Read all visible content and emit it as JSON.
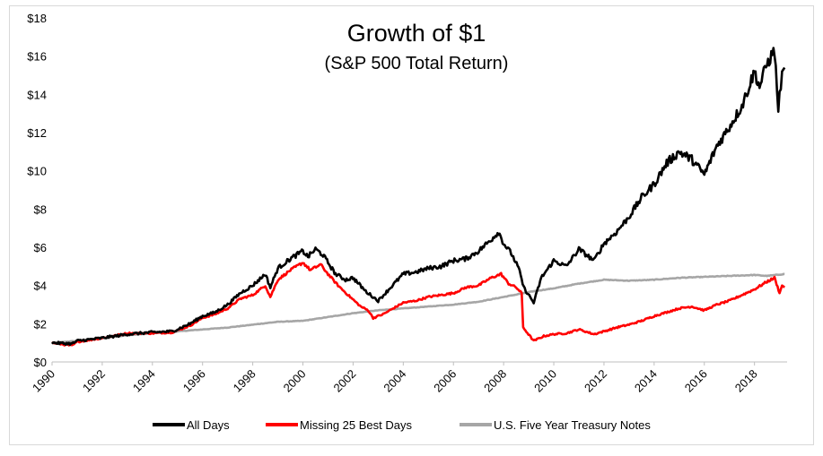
{
  "chart_data": {
    "type": "line",
    "title": "Growth of $1",
    "subtitle": "(S&P 500 Total Return)",
    "xlabel": "",
    "ylabel": "",
    "xlim": [
      1990,
      2019.3
    ],
    "ylim": [
      0,
      18
    ],
    "y_ticks": [
      "$0",
      "$2",
      "$4",
      "$6",
      "$8",
      "$10",
      "$12",
      "$14",
      "$16",
      "$18"
    ],
    "x_ticks": [
      "1990",
      "1992",
      "1994",
      "1996",
      "1998",
      "2000",
      "2002",
      "2004",
      "2006",
      "2008",
      "2010",
      "2012",
      "2014",
      "2016",
      "2018"
    ],
    "grid": false,
    "legend_position": "bottom",
    "series": [
      {
        "name": "All Days",
        "color": "#000000",
        "x": [
          1990.0,
          1990.8,
          1991.0,
          1992.0,
          1993.0,
          1994.0,
          1994.8,
          1995.5,
          1996.0,
          1996.5,
          1997.0,
          1997.5,
          1998.0,
          1998.5,
          1998.7,
          1999.0,
          1999.5,
          2000.0,
          2000.2,
          2000.5,
          2000.8,
          2001.0,
          2001.3,
          2001.7,
          2002.0,
          2002.5,
          2002.8,
          2003.0,
          2003.5,
          2004.0,
          2004.5,
          2005.0,
          2005.5,
          2006.0,
          2006.5,
          2007.0,
          2007.5,
          2007.8,
          2008.0,
          2008.3,
          2008.6,
          2008.8,
          2009.2,
          2009.5,
          2010.0,
          2010.5,
          2011.0,
          2011.6,
          2012.0,
          2012.5,
          2013.0,
          2013.5,
          2014.0,
          2014.5,
          2015.0,
          2015.5,
          2016.0,
          2016.5,
          2017.0,
          2017.5,
          2018.0,
          2018.2,
          2018.5,
          2018.8,
          2018.95,
          2019.1,
          2019.2
        ],
        "y": [
          1.0,
          0.95,
          1.1,
          1.25,
          1.45,
          1.55,
          1.6,
          2.0,
          2.4,
          2.6,
          3.0,
          3.6,
          4.0,
          4.6,
          3.9,
          4.9,
          5.4,
          5.8,
          5.5,
          5.9,
          5.6,
          5.2,
          4.6,
          4.3,
          4.4,
          3.7,
          3.4,
          3.2,
          3.9,
          4.6,
          4.7,
          4.9,
          5.0,
          5.3,
          5.4,
          5.8,
          6.4,
          6.8,
          6.2,
          5.7,
          4.9,
          3.9,
          3.1,
          4.4,
          5.3,
          5.0,
          5.9,
          5.3,
          6.2,
          6.8,
          7.6,
          8.6,
          9.3,
          10.4,
          11.0,
          10.6,
          9.8,
          11.3,
          12.3,
          13.4,
          15.2,
          14.4,
          15.6,
          16.3,
          13.2,
          15.2,
          15.4
        ]
      },
      {
        "name": "Missing 25 Best Days",
        "color": "#ff0000",
        "x": [
          1990.0,
          1990.8,
          1991.0,
          1992.0,
          1993.0,
          1994.0,
          1994.8,
          1995.5,
          1996.0,
          1996.5,
          1997.0,
          1997.5,
          1998.0,
          1998.5,
          1998.7,
          1999.0,
          1999.5,
          2000.0,
          2000.3,
          2000.7,
          2001.0,
          2001.4,
          2001.8,
          2002.3,
          2002.6,
          2002.8,
          2003.2,
          2003.6,
          2004.0,
          2004.5,
          2005.0,
          2005.5,
          2006.0,
          2006.5,
          2007.0,
          2007.5,
          2007.9,
          2008.2,
          2008.5,
          2008.72,
          2008.78,
          2009.2,
          2009.6,
          2010.0,
          2010.5,
          2011.0,
          2011.6,
          2012.0,
          2012.5,
          2013.0,
          2013.5,
          2014.0,
          2014.5,
          2015.0,
          2015.5,
          2016.0,
          2016.5,
          2017.0,
          2017.5,
          2018.0,
          2018.5,
          2018.8,
          2019.0,
          2019.1,
          2019.2
        ],
        "y": [
          1.0,
          0.85,
          1.05,
          1.25,
          1.5,
          1.5,
          1.55,
          1.9,
          2.3,
          2.5,
          2.8,
          3.3,
          3.5,
          4.0,
          3.4,
          4.3,
          4.8,
          5.2,
          4.8,
          5.1,
          4.6,
          4.0,
          3.5,
          2.9,
          2.7,
          2.3,
          2.5,
          2.8,
          3.1,
          3.2,
          3.4,
          3.5,
          3.6,
          3.9,
          4.0,
          4.4,
          4.6,
          4.1,
          3.9,
          3.6,
          1.8,
          1.1,
          1.35,
          1.45,
          1.5,
          1.7,
          1.45,
          1.6,
          1.8,
          1.95,
          2.15,
          2.4,
          2.6,
          2.8,
          2.9,
          2.7,
          3.0,
          3.2,
          3.5,
          3.8,
          4.2,
          4.4,
          3.6,
          4.0,
          3.9
        ]
      },
      {
        "name": "U.S. Five Year Treasury Notes",
        "color": "#a6a6a6",
        "x": [
          1990.0,
          1991.0,
          1992.0,
          1993.0,
          1994.0,
          1995.0,
          1996.0,
          1997.0,
          1998.0,
          1999.0,
          2000.0,
          2001.0,
          2002.0,
          2003.0,
          2004.0,
          2005.0,
          2006.0,
          2007.0,
          2008.0,
          2008.8,
          2009.2,
          2010.0,
          2011.0,
          2012.0,
          2013.0,
          2014.0,
          2015.0,
          2016.0,
          2017.0,
          2018.0,
          2018.5,
          2019.2
        ],
        "y": [
          1.0,
          1.1,
          1.25,
          1.4,
          1.5,
          1.6,
          1.7,
          1.8,
          1.95,
          2.1,
          2.15,
          2.35,
          2.55,
          2.7,
          2.8,
          2.9,
          3.0,
          3.15,
          3.4,
          3.6,
          3.7,
          3.85,
          4.1,
          4.3,
          4.25,
          4.3,
          4.4,
          4.45,
          4.5,
          4.55,
          4.5,
          4.6
        ]
      }
    ]
  }
}
